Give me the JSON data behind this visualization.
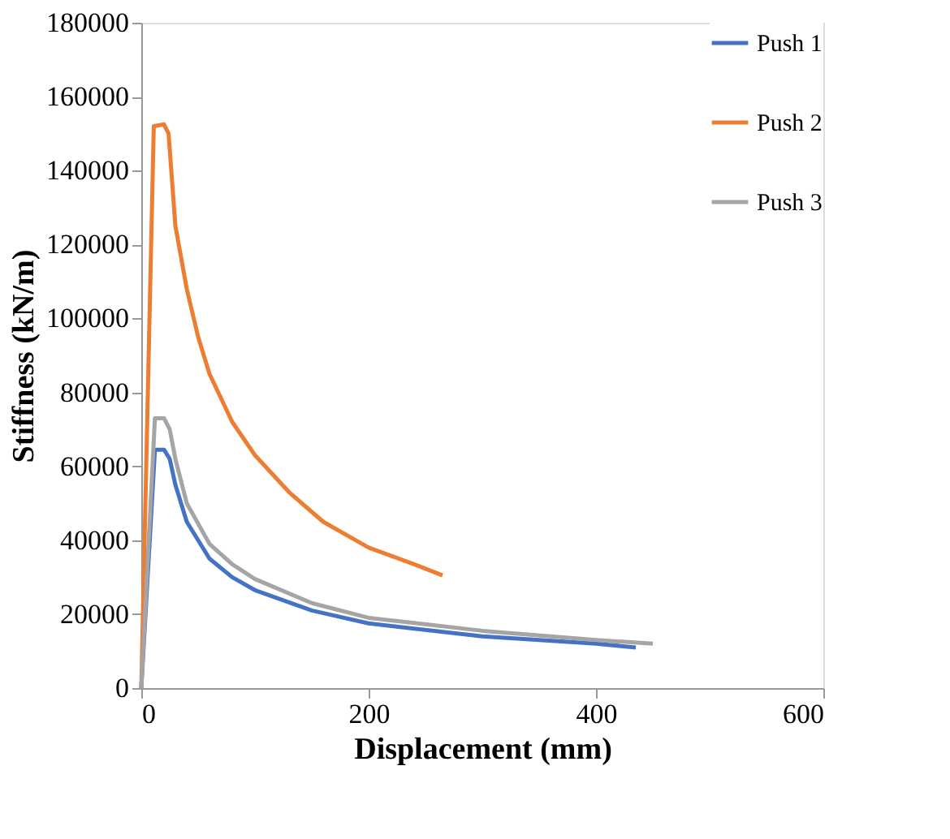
{
  "chart_data": {
    "type": "line",
    "xlabel": "Displacement (mm)",
    "ylabel": "Stiffness (kN/m)",
    "xlim": [
      0,
      600
    ],
    "xticks": [
      0,
      200,
      400,
      600
    ],
    "ylim": [
      0,
      180000
    ],
    "yticks": [
      0,
      20000,
      40000,
      60000,
      80000,
      100000,
      120000,
      140000,
      160000,
      180000
    ],
    "grid": false,
    "legend": "top right",
    "marker": "none",
    "line_style": "solid",
    "series": [
      {
        "name": "Push 1",
        "color": "#4472c4",
        "x": [
          0,
          12,
          20,
          25,
          30,
          40,
          60,
          80,
          100,
          150,
          200,
          300,
          400,
          435
        ],
        "values": [
          0,
          64500,
          64500,
          62000,
          55000,
          45000,
          35000,
          30000,
          26500,
          21000,
          17500,
          14000,
          12000,
          11000
        ]
      },
      {
        "name": "Push 2",
        "color": "#ed7d31",
        "x": [
          0,
          11,
          20,
          24,
          30,
          40,
          50,
          60,
          80,
          100,
          130,
          160,
          200,
          240,
          265
        ],
        "values": [
          0,
          152000,
          152500,
          150000,
          125000,
          108000,
          95000,
          85000,
          72000,
          63000,
          53000,
          45000,
          38000,
          33500,
          30500
        ]
      },
      {
        "name": "Push 3",
        "color": "#a5a5a5",
        "x": [
          0,
          12,
          20,
          25,
          30,
          40,
          60,
          80,
          100,
          150,
          200,
          300,
          400,
          450
        ],
        "values": [
          0,
          73000,
          73000,
          70000,
          62000,
          50000,
          39000,
          33500,
          29500,
          23000,
          19000,
          15500,
          13000,
          12000
        ]
      }
    ]
  }
}
